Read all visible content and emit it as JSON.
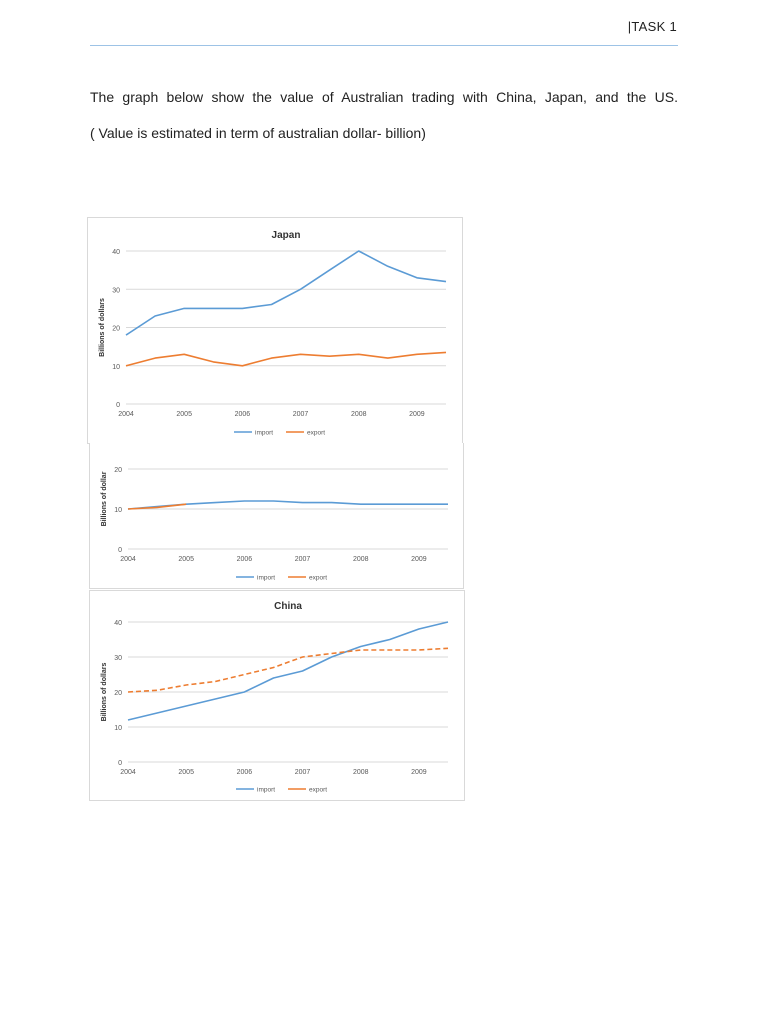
{
  "header": {
    "label": "|TASK 1"
  },
  "intro": {
    "line1": "The graph below show the value of Australian trading with China, Japan, and the US.",
    "line2": "( Value is estimated in term of australian dollar- billion)"
  },
  "colors": {
    "import": "#5b9bd5",
    "export": "#ed7d31",
    "grid": "#d9d9d9",
    "axis_text": "#595959"
  },
  "chart_data": [
    {
      "type": "line",
      "title": "Japan",
      "ylabel": "Billions of dollars",
      "xlabel": "",
      "x_ticks": [
        "2004",
        "2005",
        "2006",
        "2007",
        "2008",
        "2009"
      ],
      "y_ticks": [
        "0",
        "10",
        "20",
        "30",
        "40"
      ],
      "ylim": [
        0,
        40
      ],
      "xlim": [
        2004,
        2009.5
      ],
      "legend": "bottom",
      "grid": true,
      "series": [
        {
          "name": "import",
          "dashed": false,
          "points": [
            [
              2004,
              18
            ],
            [
              2004.5,
              23
            ],
            [
              2005,
              25
            ],
            [
              2005.5,
              25
            ],
            [
              2006,
              25
            ],
            [
              2006.5,
              26
            ],
            [
              2007,
              30
            ],
            [
              2007.5,
              35
            ],
            [
              2008,
              40
            ],
            [
              2008.5,
              36
            ],
            [
              2009,
              33
            ],
            [
              2009.5,
              32
            ]
          ]
        },
        {
          "name": "export",
          "dashed": false,
          "points": [
            [
              2004,
              10
            ],
            [
              2004.5,
              12
            ],
            [
              2005,
              13
            ],
            [
              2005.5,
              11
            ],
            [
              2006,
              10
            ],
            [
              2006.5,
              12
            ],
            [
              2007,
              13
            ],
            [
              2007.5,
              12.5
            ],
            [
              2008,
              13
            ],
            [
              2008.5,
              12
            ],
            [
              2009,
              13
            ],
            [
              2009.5,
              13.5
            ]
          ]
        }
      ]
    },
    {
      "type": "line",
      "title": "",
      "ylabel": "Billions of dollar",
      "xlabel": "",
      "x_ticks": [
        "2004",
        "2005",
        "2006",
        "2007",
        "2008",
        "2009"
      ],
      "y_ticks": [
        "0",
        "10",
        "20"
      ],
      "ylim": [
        0,
        25
      ],
      "xlim": [
        2004,
        2009.5
      ],
      "legend": "bottom",
      "grid": true,
      "series": [
        {
          "name": "import",
          "dashed": false,
          "points": [
            [
              2004,
              10
            ],
            [
              2004.5,
              10.6
            ],
            [
              2005,
              11.2
            ],
            [
              2005.5,
              11.6
            ],
            [
              2006,
              12
            ],
            [
              2006.5,
              12
            ],
            [
              2007,
              11.6
            ],
            [
              2007.5,
              11.6
            ],
            [
              2008,
              11.2
            ],
            [
              2008.5,
              11.2
            ],
            [
              2009,
              11.2
            ],
            [
              2009.5,
              11.2
            ]
          ]
        },
        {
          "name": "export",
          "dashed": false,
          "points": [
            [
              2004,
              10
            ],
            [
              2004.5,
              10.4
            ],
            [
              2005,
              11.2
            ]
          ]
        }
      ]
    },
    {
      "type": "line",
      "title": "China",
      "ylabel": "Billions of dollars",
      "xlabel": "",
      "x_ticks": [
        "2004",
        "2005",
        "2006",
        "2007",
        "2008",
        "2009"
      ],
      "y_ticks": [
        "0",
        "10",
        "20",
        "30",
        "40"
      ],
      "ylim": [
        0,
        40
      ],
      "xlim": [
        2004,
        2009.5
      ],
      "legend": "bottom",
      "grid": true,
      "series": [
        {
          "name": "import",
          "dashed": false,
          "points": [
            [
              2004,
              12
            ],
            [
              2004.5,
              14
            ],
            [
              2005,
              16
            ],
            [
              2005.5,
              18
            ],
            [
              2006,
              20
            ],
            [
              2006.5,
              24
            ],
            [
              2007,
              26
            ],
            [
              2007.5,
              30
            ],
            [
              2008,
              33
            ],
            [
              2008.5,
              35
            ],
            [
              2009,
              38
            ],
            [
              2009.5,
              40
            ]
          ]
        },
        {
          "name": "export",
          "dashed": true,
          "points": [
            [
              2004,
              20
            ],
            [
              2004.5,
              20.5
            ],
            [
              2005,
              22
            ],
            [
              2005.5,
              23
            ],
            [
              2006,
              25
            ],
            [
              2006.5,
              27
            ],
            [
              2007,
              30
            ],
            [
              2007.5,
              31
            ],
            [
              2008,
              32
            ],
            [
              2008.5,
              32
            ],
            [
              2009,
              32
            ],
            [
              2009.5,
              32.5
            ]
          ]
        }
      ]
    }
  ]
}
